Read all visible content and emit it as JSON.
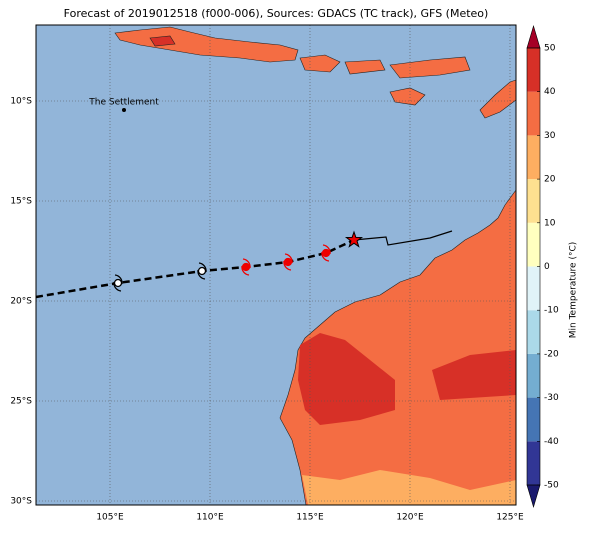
{
  "chart_data": {
    "type": "map",
    "title": "Forecast of 2019012518 (f000-006), Sources: GDACS (TC track), GFS (Meteo)",
    "xlim": [
      101.3,
      125.3
    ],
    "ylim": [
      -30.2,
      -6.2
    ],
    "xticks": [
      {
        "value": 105,
        "label": "105°E"
      },
      {
        "value": 110,
        "label": "110°E"
      },
      {
        "value": 115,
        "label": "115°E"
      },
      {
        "value": 120,
        "label": "120°E"
      },
      {
        "value": 125,
        "label": "125°E"
      }
    ],
    "yticks": [
      {
        "value": -10,
        "label": "10°S"
      },
      {
        "value": -15,
        "label": "15°S"
      },
      {
        "value": -20,
        "label": "20°S"
      },
      {
        "value": -25,
        "label": "25°S"
      },
      {
        "value": -30,
        "label": "30°S"
      }
    ],
    "grid": true,
    "ocean_color": "#92b5d9",
    "annotation": {
      "text": "The Settlement",
      "lon": 105.7,
      "lat": -10.45
    },
    "track": {
      "lon": [
        101.3,
        105.4,
        109.6,
        111.8,
        113.9,
        115.8,
        117.2
      ],
      "lat": [
        -19.8,
        -19.1,
        -18.5,
        -18.3,
        -18.05,
        -17.6,
        -16.95
      ],
      "markers": [
        "none",
        "past",
        "past",
        "forecast",
        "forecast",
        "forecast",
        "current"
      ]
    },
    "observed_line": {
      "lon": [
        117.2,
        118.8,
        118.9,
        121.0,
        122.1
      ],
      "lat": [
        -16.95,
        -16.8,
        -17.2,
        -16.85,
        -16.5
      ]
    },
    "colorbar": {
      "label": "Min Temperature (°C)",
      "lim": [
        -50,
        50
      ],
      "ticks": [
        -50,
        -40,
        -30,
        -20,
        -10,
        0,
        10,
        20,
        30,
        40,
        50
      ],
      "colors": [
        "#313695",
        "#4575b4",
        "#74add1",
        "#abd9e9",
        "#e0f3f8",
        "#ffffbf",
        "#fee090",
        "#fdae61",
        "#f46d43",
        "#d73027"
      ],
      "under_color": "#1a1a6e",
      "over_color": "#a50026"
    }
  }
}
